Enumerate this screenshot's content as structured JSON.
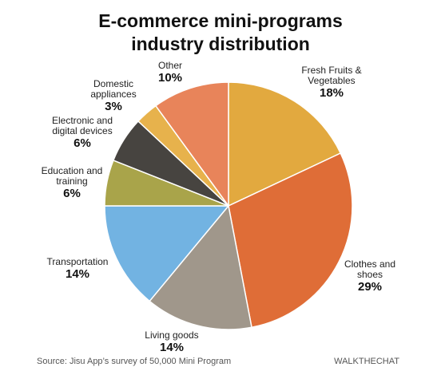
{
  "chart_data": {
    "type": "pie",
    "title": "E-commerce mini-programs industry distribution",
    "categories": [
      "Fresh Fruits & Vegetables",
      "Clothes and shoes",
      "Living goods",
      "Transportation",
      "Education and training",
      "Electronic and digital devices",
      "Domestic appliances",
      "Other"
    ],
    "values": [
      18,
      29,
      14,
      14,
      6,
      6,
      3,
      10
    ],
    "value_labels": [
      "18%",
      "29%",
      "14%",
      "14%",
      "6%",
      "6%",
      "3%",
      "10%"
    ],
    "colors": [
      "#e2a93f",
      "#df6d37",
      "#a0978b",
      "#72b3e2",
      "#a9a44a",
      "#474440",
      "#e7b24c",
      "#e8845a"
    ],
    "source": "Source: Jisu App’s survey of 50,000 Mini Program",
    "brand": "WALKTHECHAT"
  }
}
